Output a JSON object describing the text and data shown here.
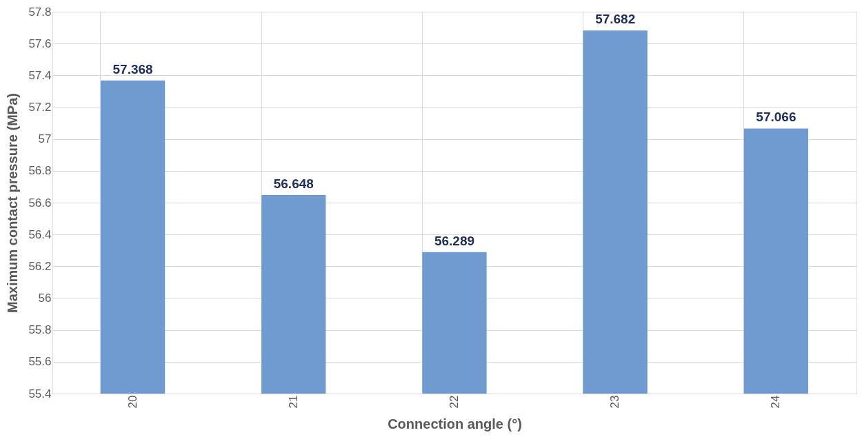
{
  "chart_data": {
    "type": "bar",
    "xlabel": "Connection angle (°)",
    "ylabel": "Maximum contact pressure (MPa)",
    "categories": [
      "20",
      "21",
      "22",
      "23",
      "24"
    ],
    "values": [
      57.368,
      56.648,
      56.289,
      57.682,
      57.066
    ],
    "color": "#6f9bd1",
    "data_labels": true,
    "ylim": [
      55.4,
      57.8
    ],
    "yticks": [
      55.4,
      55.6,
      55.8,
      56,
      56.2,
      56.4,
      56.6,
      56.8,
      57,
      57.2,
      57.4,
      57.6,
      57.8
    ],
    "grid": true
  }
}
